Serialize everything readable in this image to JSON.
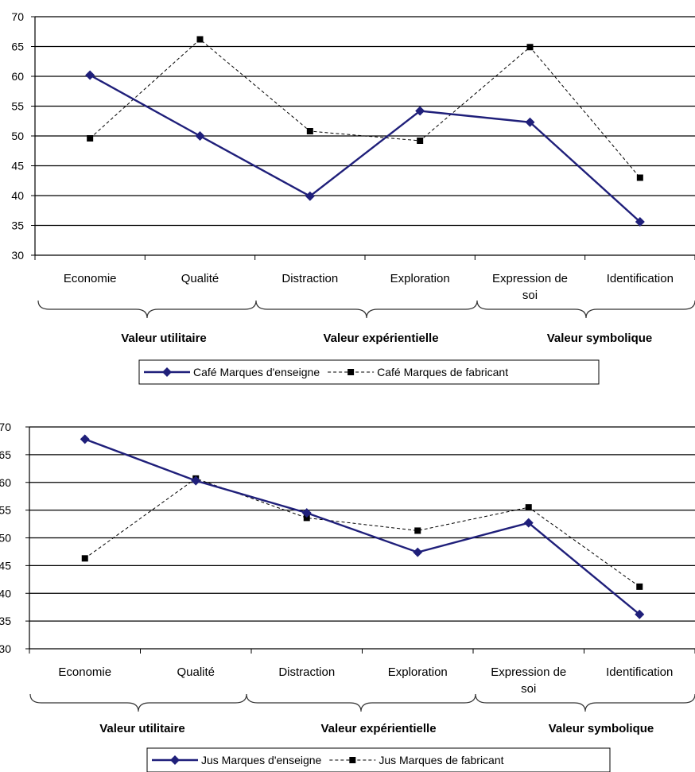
{
  "chart_data": [
    {
      "type": "line",
      "categories": [
        "Economie",
        "Qualité",
        "Distraction",
        "Exploration",
        "Expression de soi",
        "Identification"
      ],
      "category_label_lines": [
        [
          "Economie"
        ],
        [
          "Qualité"
        ],
        [
          "Distraction"
        ],
        [
          "Exploration"
        ],
        [
          "Expression de",
          "soi"
        ],
        [
          "Identification"
        ]
      ],
      "yticks": [
        "70",
        "65",
        "60",
        "55",
        "50",
        "45",
        "40",
        "35",
        "30"
      ],
      "ylim": [
        30,
        70
      ],
      "grid": true,
      "groups": [
        {
          "label": "Valeur utilitaire",
          "categories": [
            "Economie",
            "Qualité"
          ]
        },
        {
          "label": "Valeur expérientielle",
          "categories": [
            "Distraction",
            "Exploration"
          ]
        },
        {
          "label": "Valeur symbolique",
          "categories": [
            "Expression de soi",
            "Identification"
          ]
        }
      ],
      "series": [
        {
          "name": "Café Marques d'enseigne",
          "values": [
            60.2,
            50.0,
            39.9,
            54.2,
            52.3,
            35.6
          ],
          "color": "#1F1F7A",
          "style": "solid",
          "marker": "diamond"
        },
        {
          "name": "Café Marques de fabricant",
          "values": [
            49.6,
            66.2,
            50.8,
            49.2,
            64.9,
            43.0
          ],
          "color": "#000000",
          "style": "dashed",
          "marker": "square"
        }
      ],
      "legend": "bottom"
    },
    {
      "type": "line",
      "categories": [
        "Economie",
        "Qualité",
        "Distraction",
        "Exploration",
        "Expression de soi",
        "Identification"
      ],
      "category_label_lines": [
        [
          "Economie"
        ],
        [
          "Qualité"
        ],
        [
          "Distraction"
        ],
        [
          "Exploration"
        ],
        [
          "Expression de",
          "soi"
        ],
        [
          "Identification"
        ]
      ],
      "yticks": [
        "70",
        "65",
        "60",
        "55",
        "50",
        "45",
        "40",
        "35",
        "30"
      ],
      "ylim": [
        30,
        70
      ],
      "grid": true,
      "groups": [
        {
          "label": "Valeur utilitaire",
          "categories": [
            "Economie",
            "Qualité"
          ]
        },
        {
          "label": "Valeur expérientielle",
          "categories": [
            "Distraction",
            "Exploration"
          ]
        },
        {
          "label": "Valeur symbolique",
          "categories": [
            "Expression de soi",
            "Identification"
          ]
        }
      ],
      "series": [
        {
          "name": "Jus Marques d'enseigne",
          "values": [
            67.8,
            60.3,
            54.5,
            47.4,
            52.7,
            36.2
          ],
          "color": "#1F1F7A",
          "style": "solid",
          "marker": "diamond"
        },
        {
          "name": "Jus Marques de fabricant",
          "values": [
            46.3,
            60.7,
            53.6,
            51.3,
            55.5,
            41.2
          ],
          "color": "#000000",
          "style": "dashed",
          "marker": "square"
        }
      ],
      "legend": "bottom"
    }
  ]
}
